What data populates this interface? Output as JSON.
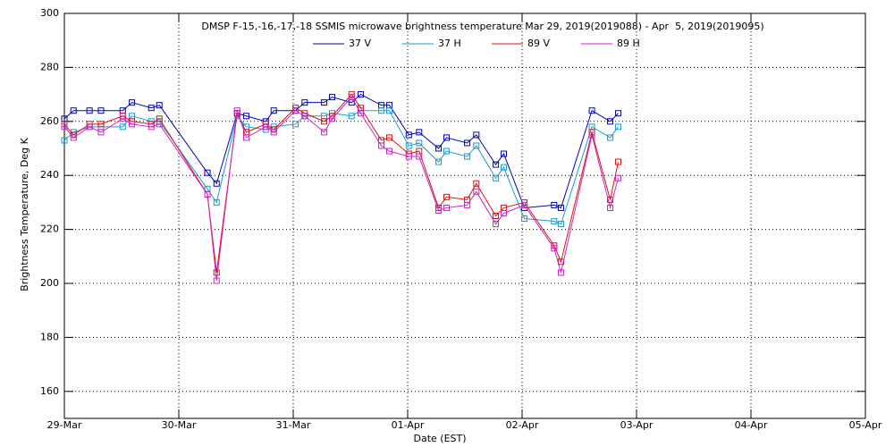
{
  "chart_data": {
    "type": "line",
    "title": "DMSP F-15,-16,-17,-18 SSMIS microwave brightness temperature Mar 29, 2019(2019088) - Apr  5, 2019(2019095)",
    "xlabel": "Date (EST)",
    "ylabel": "Brightness Temperature, Deg K",
    "x": [
      0,
      0.08,
      0.22,
      0.32,
      0.51,
      0.59,
      0.76,
      0.83,
      1.25,
      1.33,
      1.51,
      1.59,
      1.76,
      1.83,
      2.02,
      2.1,
      2.27,
      2.34,
      2.51,
      2.59,
      2.77,
      2.84,
      3.01,
      3.1,
      3.27,
      3.34,
      3.52,
      3.6,
      3.77,
      3.84,
      4.02,
      4.28,
      4.34,
      4.61,
      4.77,
      4.84
    ],
    "series": [
      {
        "name": "37 V",
        "color": "#0000b8",
        "values": [
          261,
          264,
          264,
          264,
          264,
          267,
          265,
          266,
          241,
          237,
          263,
          262,
          260,
          264,
          264,
          267,
          267,
          269,
          267,
          270,
          266,
          266,
          255,
          256,
          250,
          254,
          252,
          255,
          244,
          248,
          228,
          229,
          228,
          264,
          260,
          263
        ]
      },
      {
        "name": "37 H",
        "color": "#1a9bd0",
        "values": [
          253,
          256,
          258,
          258,
          258,
          262,
          260,
          260,
          235,
          230,
          262,
          258,
          257,
          258,
          259,
          262,
          262,
          263,
          262,
          264,
          264,
          264,
          251,
          252,
          245,
          249,
          247,
          251,
          239,
          243,
          224,
          223,
          222,
          258,
          254,
          258
        ]
      },
      {
        "name": "89 V",
        "color": "#dd1111",
        "values": [
          259,
          255,
          259,
          259,
          262,
          260,
          259,
          261,
          233,
          204,
          263,
          256,
          259,
          257,
          265,
          263,
          260,
          262,
          270,
          265,
          253,
          254,
          248,
          249,
          228,
          232,
          231,
          237,
          225,
          228,
          230,
          214,
          208,
          256,
          231,
          245
        ]
      },
      {
        "name": "89 H",
        "color": "#cc22cc",
        "values": [
          258,
          254,
          258,
          256,
          261,
          259,
          258,
          259,
          233,
          201,
          264,
          254,
          258,
          256,
          264,
          262,
          256,
          261,
          269,
          263,
          251,
          249,
          247,
          247,
          227,
          228,
          229,
          234,
          222,
          226,
          229,
          213,
          204,
          255,
          228,
          239
        ]
      }
    ],
    "xlim": [
      0,
      7
    ],
    "xticks": [
      {
        "value": 0,
        "label": "29-Mar"
      },
      {
        "value": 1,
        "label": "30-Mar"
      },
      {
        "value": 2,
        "label": "31-Mar"
      },
      {
        "value": 3,
        "label": "01-Apr"
      },
      {
        "value": 4,
        "label": "02-Apr"
      },
      {
        "value": 5,
        "label": "03-Apr"
      },
      {
        "value": 6,
        "label": "04-Apr"
      },
      {
        "value": 7,
        "label": "05-Apr"
      }
    ],
    "ylim": [
      150,
      300
    ],
    "yticks": [
      160,
      180,
      200,
      220,
      240,
      260,
      280,
      300
    ],
    "grid": true,
    "legend": "top"
  }
}
